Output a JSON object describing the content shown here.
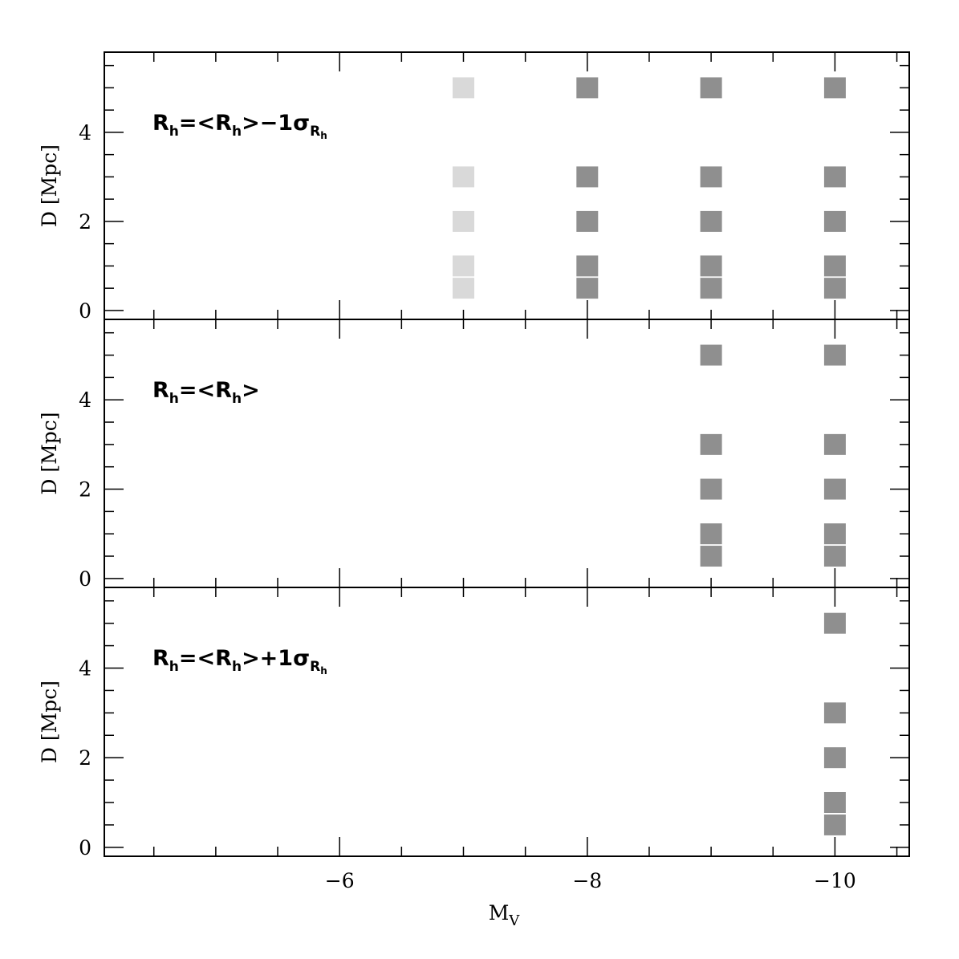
{
  "chart_data": {
    "type": "scatter",
    "layout": "three vertically stacked panels sharing the x axis",
    "xlabel": "M",
    "xlabel_sub": "V",
    "ylabel": "D [Mpc]",
    "xlim": [
      -4.1,
      -10.6
    ],
    "ylim": [
      -0.2,
      5.8
    ],
    "x_major_ticks": [
      -6,
      -8,
      -10
    ],
    "x_tick_labels": [
      "−6",
      "−8",
      "−10"
    ],
    "y_major_ticks": [
      0,
      2,
      4
    ],
    "y_tick_labels": [
      "0",
      "2",
      "4"
    ],
    "marker": "filled square",
    "colors": {
      "detected": "#8f8f8f",
      "marginal": "#d9d9d9",
      "frame": "#000000"
    },
    "panels": [
      {
        "label": {
          "base": "R",
          "sub": "h",
          "mid": "=<R",
          "mid_sub": "h",
          "tail": ">−1σ",
          "tail_sub": "R",
          "tail_subsub": "h"
        },
        "series": [
          {
            "color_key": "marginal",
            "points": [
              [
                -7,
                0.5
              ],
              [
                -7,
                1.0
              ],
              [
                -7,
                2.0
              ],
              [
                -7,
                3.0
              ],
              [
                -7,
                5.0
              ]
            ]
          },
          {
            "color_key": "detected",
            "points": [
              [
                -8,
                0.5
              ],
              [
                -8,
                1.0
              ],
              [
                -8,
                2.0
              ],
              [
                -8,
                3.0
              ],
              [
                -8,
                5.0
              ],
              [
                -9,
                0.5
              ],
              [
                -9,
                1.0
              ],
              [
                -9,
                2.0
              ],
              [
                -9,
                3.0
              ],
              [
                -9,
                5.0
              ],
              [
                -10,
                0.5
              ],
              [
                -10,
                1.0
              ],
              [
                -10,
                2.0
              ],
              [
                -10,
                3.0
              ],
              [
                -10,
                5.0
              ]
            ]
          }
        ]
      },
      {
        "label": {
          "base": "R",
          "sub": "h",
          "mid": "=<R",
          "mid_sub": "h",
          "tail": ">",
          "tail_sub": "",
          "tail_subsub": ""
        },
        "series": [
          {
            "color_key": "detected",
            "points": [
              [
                -9,
                0.5
              ],
              [
                -9,
                1.0
              ],
              [
                -9,
                2.0
              ],
              [
                -9,
                3.0
              ],
              [
                -9,
                5.0
              ],
              [
                -10,
                0.5
              ],
              [
                -10,
                1.0
              ],
              [
                -10,
                2.0
              ],
              [
                -10,
                3.0
              ],
              [
                -10,
                5.0
              ]
            ]
          }
        ]
      },
      {
        "label": {
          "base": "R",
          "sub": "h",
          "mid": "=<R",
          "mid_sub": "h",
          "tail": ">+1σ",
          "tail_sub": "R",
          "tail_subsub": "h"
        },
        "series": [
          {
            "color_key": "detected",
            "points": [
              [
                -10,
                0.5
              ],
              [
                -10,
                1.0
              ],
              [
                -10,
                2.0
              ],
              [
                -10,
                3.0
              ],
              [
                -10,
                5.0
              ]
            ]
          }
        ]
      }
    ]
  }
}
